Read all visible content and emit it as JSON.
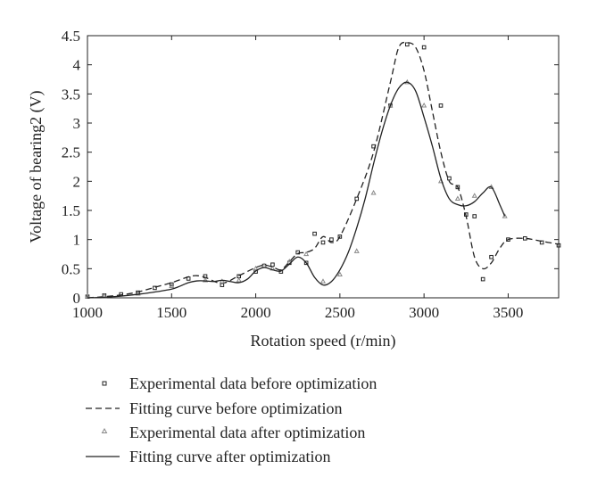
{
  "chart_data": {
    "type": "line",
    "title": "",
    "xlabel": "Rotation speed (r/min)",
    "ylabel": "Voltage of bearing2 (V)",
    "xlim": [
      1000,
      3800
    ],
    "ylim": [
      0,
      4.5
    ],
    "x_ticks": [
      1000,
      1500,
      2000,
      2500,
      3000,
      3500
    ],
    "y_ticks": [
      0,
      0.5,
      1,
      1.5,
      2,
      2.5,
      3,
      3.5,
      4,
      4.5
    ],
    "x_tick_labels": [
      "1000",
      "1500",
      "2000",
      "2500",
      "3000",
      "3500"
    ],
    "y_tick_labels": [
      "0",
      "0.5",
      "1",
      "1.5",
      "2",
      "2.5",
      "3",
      "3.5",
      "4",
      "4.5"
    ],
    "grid": false,
    "legend_position": "bottom",
    "series": [
      {
        "name": "Experimental data before optimization",
        "style": "square-marker",
        "color": "#222222",
        "x": [
          1000,
          1100,
          1200,
          1300,
          1400,
          1500,
          1600,
          1700,
          1800,
          1900,
          2000,
          2050,
          2100,
          2150,
          2200,
          2250,
          2300,
          2350,
          2400,
          2450,
          2500,
          2600,
          2700,
          2800,
          2900,
          3000,
          3100,
          3150,
          3200,
          3250,
          3300,
          3350,
          3400,
          3500,
          3600,
          3700,
          3800
        ],
        "y": [
          0.02,
          0.04,
          0.06,
          0.09,
          0.17,
          0.23,
          0.33,
          0.37,
          0.22,
          0.37,
          0.45,
          0.55,
          0.57,
          0.45,
          0.6,
          0.78,
          0.6,
          1.1,
          0.95,
          1.0,
          1.05,
          1.7,
          2.6,
          3.3,
          4.35,
          4.3,
          3.3,
          2.05,
          1.9,
          1.43,
          1.4,
          0.32,
          0.7,
          1.0,
          1.02,
          0.95,
          0.9
        ]
      },
      {
        "name": "Fitting curve before optimization",
        "style": "dashed",
        "color": "#222222",
        "x": [
          1000,
          1100,
          1200,
          1300,
          1400,
          1500,
          1600,
          1650,
          1700,
          1800,
          1900,
          2000,
          2050,
          2100,
          2150,
          2200,
          2250,
          2300,
          2350,
          2400,
          2450,
          2500,
          2600,
          2700,
          2800,
          2850,
          2900,
          2950,
          3000,
          3050,
          3100,
          3150,
          3200,
          3250,
          3300,
          3350,
          3400,
          3450,
          3500,
          3600,
          3700,
          3800
        ],
        "y": [
          0.0,
          0.02,
          0.05,
          0.1,
          0.18,
          0.26,
          0.36,
          0.38,
          0.35,
          0.25,
          0.38,
          0.52,
          0.56,
          0.53,
          0.48,
          0.62,
          0.76,
          0.78,
          0.85,
          1.05,
          0.95,
          1.05,
          1.7,
          2.5,
          3.7,
          4.3,
          4.38,
          4.3,
          3.9,
          3.2,
          2.5,
          2.0,
          1.9,
          1.4,
          0.7,
          0.5,
          0.6,
          0.85,
          1.0,
          1.02,
          0.97,
          0.92
        ]
      },
      {
        "name": "Experimental data after optimization",
        "style": "triangle-marker",
        "color": "#888888",
        "x": [
          1000,
          1100,
          1300,
          1500,
          1700,
          1800,
          1900,
          2000,
          2050,
          2100,
          2200,
          2300,
          2400,
          2500,
          2600,
          2700,
          2800,
          2900,
          3000,
          3100,
          3200,
          3300,
          3400,
          3480
        ],
        "y": [
          0.02,
          0.03,
          0.07,
          0.2,
          0.3,
          0.28,
          0.3,
          0.5,
          0.55,
          0.5,
          0.62,
          0.75,
          0.28,
          0.4,
          0.8,
          1.8,
          3.3,
          3.7,
          3.3,
          2.0,
          1.7,
          1.75,
          1.9,
          1.4
        ]
      },
      {
        "name": "Fitting curve after optimization",
        "style": "solid",
        "color": "#222222",
        "x": [
          1000,
          1100,
          1200,
          1300,
          1400,
          1500,
          1550,
          1600,
          1650,
          1700,
          1750,
          1800,
          1850,
          1900,
          1950,
          2000,
          2050,
          2100,
          2150,
          2200,
          2250,
          2300,
          2350,
          2400,
          2450,
          2500,
          2550,
          2600,
          2650,
          2700,
          2750,
          2800,
          2850,
          2900,
          2950,
          3000,
          3050,
          3100,
          3150,
          3200,
          3250,
          3300,
          3350,
          3400,
          3450,
          3480
        ],
        "y": [
          0.0,
          0.01,
          0.03,
          0.06,
          0.1,
          0.15,
          0.2,
          0.26,
          0.29,
          0.29,
          0.28,
          0.3,
          0.28,
          0.26,
          0.32,
          0.46,
          0.52,
          0.48,
          0.46,
          0.58,
          0.7,
          0.6,
          0.35,
          0.22,
          0.28,
          0.48,
          0.78,
          1.2,
          1.7,
          2.3,
          2.85,
          3.3,
          3.6,
          3.7,
          3.55,
          3.1,
          2.6,
          2.05,
          1.7,
          1.6,
          1.58,
          1.65,
          1.8,
          1.9,
          1.6,
          1.4
        ]
      }
    ]
  }
}
